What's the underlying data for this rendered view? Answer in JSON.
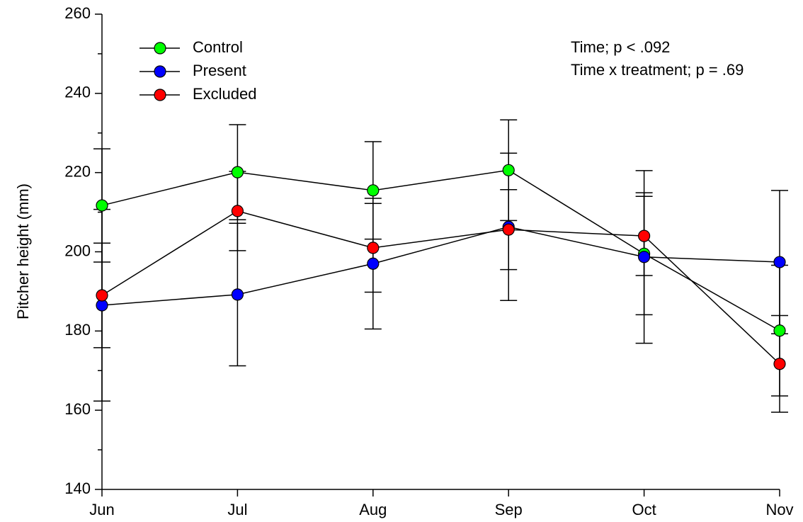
{
  "chart_data": {
    "type": "line",
    "y_label": "Pitcher height (mm)",
    "annotations": [
      "Time; p < .092",
      "Time x treatment; p = .69"
    ],
    "categories": [
      "Jun",
      "Jul",
      "Aug",
      "Sep",
      "Oct",
      "Nov"
    ],
    "series": [
      {
        "name": "Control",
        "color": "#00ff00",
        "values": [
          211.7,
          220.1,
          215.5,
          220.6,
          199.5,
          180.1
        ],
        "errors": [
          14.3,
          12,
          12.3,
          12.7,
          15.4,
          16.5
        ]
      },
      {
        "name": "Present",
        "color": "#0000ff",
        "values": [
          186.5,
          189.2,
          197.0,
          206.3,
          198.7,
          197.4
        ],
        "errors": [
          24.2,
          18,
          16.5,
          18.6,
          21.8,
          18.1
        ]
      },
      {
        "name": "Excluded",
        "color": "#ff0000",
        "values": [
          189.0,
          210.3,
          201.0,
          205.6,
          204.0,
          171.7
        ],
        "errors": [
          13.2,
          10,
          11.2,
          10.1,
          10,
          12.2
        ]
      }
    ],
    "ylim": [
      140,
      260
    ],
    "yticks": [
      140,
      160,
      180,
      200,
      220,
      240,
      260
    ],
    "yminorticks": [
      150,
      170,
      190,
      210,
      230,
      250
    ],
    "legend": "top-left",
    "grid": false
  }
}
